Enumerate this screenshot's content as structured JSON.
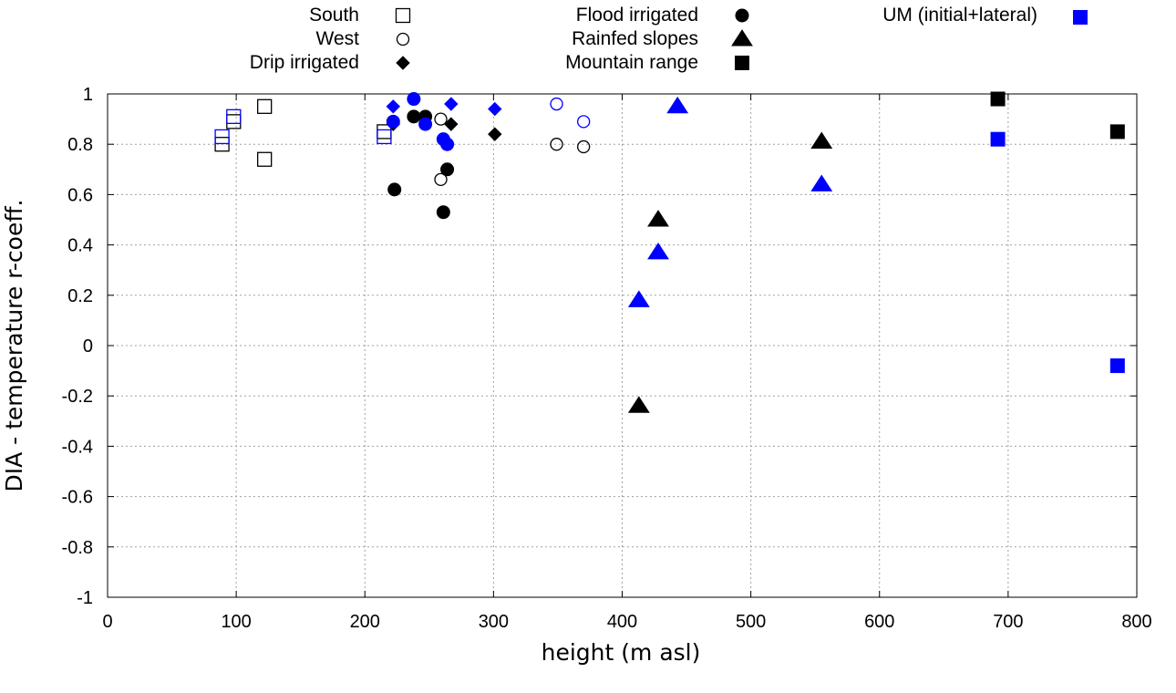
{
  "chart_data": {
    "type": "scatter",
    "title": "",
    "xlabel": "height (m asl)",
    "ylabel": "DIA - temperature r-coeff.",
    "xlim": [
      0,
      800
    ],
    "ylim": [
      -1,
      1
    ],
    "xticks": [
      0,
      100,
      200,
      300,
      400,
      500,
      600,
      700,
      800
    ],
    "yticks": [
      -1,
      -0.8,
      -0.6,
      -0.4,
      -0.2,
      0,
      0.2,
      0.4,
      0.6,
      0.8,
      1
    ],
    "xtick_labels": [
      "0",
      "100",
      "200",
      "300",
      "400",
      "500",
      "600",
      "700",
      "800"
    ],
    "ytick_labels": [
      "-1",
      "-0.8",
      "-0.6",
      "-0.4",
      "-0.2",
      "0",
      "0.2",
      "0.4",
      "0.6",
      "0.8",
      "1"
    ],
    "grid": true,
    "legend_position": "top",
    "colors": {
      "observed": "#000000",
      "model": "#0000ff"
    },
    "legend": [
      {
        "label": "South",
        "marker": "open-square",
        "color": "#000000"
      },
      {
        "label": "West",
        "marker": "open-circle",
        "color": "#000000"
      },
      {
        "label": "Drip irrigated",
        "marker": "filled-diamond",
        "color": "#000000"
      },
      {
        "label": "Flood irrigated",
        "marker": "filled-circle",
        "color": "#000000"
      },
      {
        "label": "Rainfed slopes",
        "marker": "filled-triangle",
        "color": "#000000"
      },
      {
        "label": "Mountain range",
        "marker": "filled-square",
        "color": "#000000"
      },
      {
        "label": "UM (initial+lateral)",
        "marker": "filled-square",
        "color": "#0000ff"
      }
    ],
    "series": [
      {
        "name": "South",
        "marker": "open-square",
        "color": "#000000",
        "points": [
          [
            89,
            0.8
          ],
          [
            98,
            0.89
          ],
          [
            122,
            0.95
          ],
          [
            122,
            0.74
          ],
          [
            215,
            0.85
          ]
        ]
      },
      {
        "name": "South (UM)",
        "marker": "open-square",
        "color": "#0000ff",
        "points": [
          [
            89,
            0.83
          ],
          [
            98,
            0.91
          ],
          [
            215,
            0.83
          ]
        ]
      },
      {
        "name": "West",
        "marker": "open-circle",
        "color": "#000000",
        "points": [
          [
            259,
            0.9
          ],
          [
            259,
            0.66
          ],
          [
            349,
            0.8
          ],
          [
            370,
            0.79
          ]
        ]
      },
      {
        "name": "West (UM)",
        "marker": "open-circle",
        "color": "#0000ff",
        "points": [
          [
            349,
            0.96
          ],
          [
            370,
            0.89
          ]
        ]
      },
      {
        "name": "Drip irrigated",
        "marker": "filled-diamond",
        "color": "#000000",
        "points": [
          [
            222,
            0.88
          ],
          [
            267,
            0.88
          ],
          [
            301,
            0.84
          ]
        ]
      },
      {
        "name": "Drip irrigated (UM)",
        "marker": "filled-diamond",
        "color": "#0000ff",
        "points": [
          [
            222,
            0.95
          ],
          [
            267,
            0.96
          ],
          [
            301,
            0.94
          ]
        ]
      },
      {
        "name": "Flood irrigated",
        "marker": "filled-circle",
        "color": "#000000",
        "points": [
          [
            223,
            0.62
          ],
          [
            238,
            0.91
          ],
          [
            247,
            0.91
          ],
          [
            261,
            0.53
          ],
          [
            264,
            0.7
          ]
        ]
      },
      {
        "name": "Flood irrigated (UM)",
        "marker": "filled-circle",
        "color": "#0000ff",
        "points": [
          [
            222,
            0.89
          ],
          [
            238,
            0.98
          ],
          [
            247,
            0.88
          ],
          [
            261,
            0.82
          ],
          [
            264,
            0.8
          ]
        ]
      },
      {
        "name": "Rainfed slopes",
        "marker": "filled-triangle",
        "color": "#000000",
        "points": [
          [
            413,
            -0.24
          ],
          [
            428,
            0.5
          ],
          [
            555,
            0.81
          ]
        ]
      },
      {
        "name": "Rainfed slopes (UM)",
        "marker": "filled-triangle",
        "color": "#0000ff",
        "points": [
          [
            413,
            0.18
          ],
          [
            428,
            0.37
          ],
          [
            443,
            0.95
          ],
          [
            555,
            0.64
          ]
        ]
      },
      {
        "name": "Mountain range",
        "marker": "filled-square",
        "color": "#000000",
        "points": [
          [
            692,
            0.98
          ],
          [
            785,
            0.85
          ]
        ]
      },
      {
        "name": "UM (initial+lateral)",
        "marker": "filled-square",
        "color": "#0000ff",
        "points": [
          [
            692,
            0.82
          ],
          [
            785,
            -0.08
          ]
        ]
      }
    ]
  }
}
